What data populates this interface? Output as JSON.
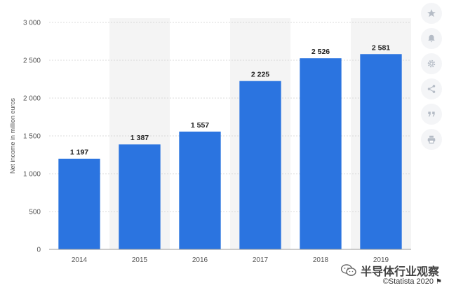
{
  "chart_data": {
    "type": "bar",
    "categories": [
      "2014",
      "2015",
      "2016",
      "2017",
      "2018",
      "2019"
    ],
    "values": [
      1197,
      1387,
      1557,
      2225,
      2526,
      2581
    ],
    "value_labels": [
      "1 197",
      "1 387",
      "1 557",
      "2 225",
      "2 526",
      "2 581"
    ],
    "ylabel": "Net income in million euros",
    "ylim": [
      0,
      3000
    ],
    "yticks": [
      0,
      500,
      1000,
      1500,
      2000,
      2500,
      3000
    ],
    "ytick_labels": [
      "0",
      "500",
      "1 000",
      "1 500",
      "2 000",
      "2 500",
      "3 000"
    ],
    "bar_color": "#2b74e0",
    "band_color": "#f4f4f4",
    "grid": true
  },
  "toolbar": {
    "icons": [
      "star-icon",
      "bell-icon",
      "gear-icon",
      "share-icon",
      "quote-icon",
      "print-icon"
    ]
  },
  "watermark": {
    "text": "半导体行业观察"
  },
  "credit": {
    "text": "©Statista 2020"
  }
}
